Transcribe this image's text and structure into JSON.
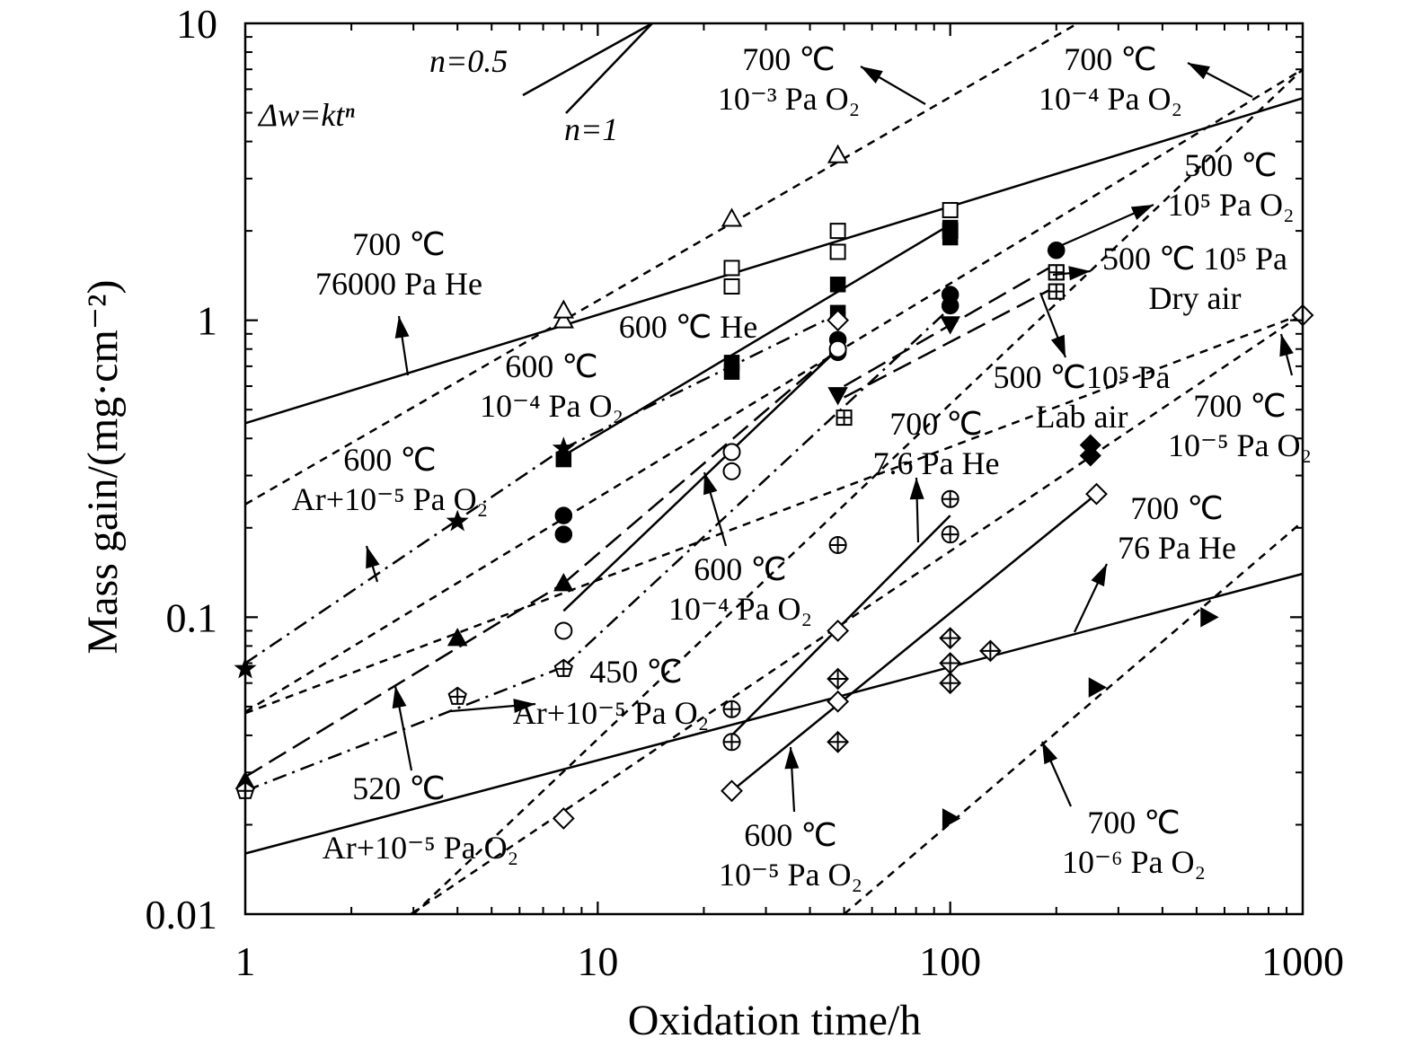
{
  "chart_data": {
    "type": "scatter",
    "xscale": "log",
    "yscale": "log",
    "xlim": [
      1,
      1000
    ],
    "ylim": [
      0.01,
      10
    ],
    "xticks": [
      "1",
      "10",
      "100",
      "1000"
    ],
    "yticks": [
      "0.01",
      "0.1",
      "1",
      "10"
    ],
    "xlabel": "Oxidation time/h",
    "ylabel": "Mass gain/(mg·cm⁻²)",
    "grid": false,
    "legend": "none",
    "series": [
      {
        "name": "700 ℃ 10⁻³ Pa O₂",
        "marker": "triangle-open",
        "line": "dashed",
        "points": [
          [
            8,
            1.0
          ],
          [
            8,
            1.08
          ],
          [
            24,
            2.2
          ],
          [
            48,
            3.6
          ]
        ]
      },
      {
        "name": "700 ℃ 76000 Pa He",
        "marker": "square-open",
        "line": "solid",
        "points": [
          [
            24,
            1.3
          ],
          [
            24,
            1.5
          ],
          [
            48,
            1.7
          ],
          [
            48,
            2.0
          ],
          [
            100,
            2.0
          ],
          [
            100,
            2.35
          ],
          [
            200,
            1.25
          ],
          [
            200,
            1.45
          ]
        ]
      },
      {
        "name": "600 ℃ He",
        "marker": "square-filled",
        "line": "solid",
        "points": [
          [
            8,
            0.34
          ],
          [
            24,
            0.67
          ],
          [
            24,
            0.72
          ],
          [
            48,
            1.06
          ],
          [
            48,
            1.32
          ],
          [
            100,
            1.9
          ],
          [
            100,
            2.05
          ]
        ]
      },
      {
        "name": "500 ℃ 10⁵ Pa O₂",
        "marker": "circle-filled",
        "line": "dash-dot",
        "points": [
          [
            8,
            0.19
          ],
          [
            8,
            0.22
          ],
          [
            48,
            0.78
          ],
          [
            48,
            0.86
          ],
          [
            100,
            1.12
          ],
          [
            100,
            1.22
          ],
          [
            200,
            1.72
          ]
        ]
      },
      {
        "name": "500 ℃ 10⁵ Pa Dry air",
        "marker": "square-cross",
        "line": "long-dash",
        "points": [
          [
            50,
            0.47
          ],
          [
            200,
            1.25
          ],
          [
            200,
            1.45
          ]
        ]
      },
      {
        "name": "500 ℃ 10⁵ Pa Lab air",
        "marker": "triangle-down-filled",
        "line": "long-dash",
        "points": [
          [
            48,
            0.56
          ],
          [
            100,
            0.97
          ]
        ]
      },
      {
        "name": "600 ℃ 10⁻⁴ Pa O₂ (stars)",
        "marker": "star",
        "line": "dash-dot",
        "points": [
          [
            1,
            0.067
          ],
          [
            4,
            0.21
          ],
          [
            8,
            0.37
          ]
        ]
      },
      {
        "name": "600 ℃ 10⁻⁴ Pa O₂",
        "marker": "circle-open",
        "line": "solid",
        "points": [
          [
            8,
            0.09
          ],
          [
            24,
            0.31
          ],
          [
            24,
            0.36
          ],
          [
            48,
            0.8
          ]
        ]
      },
      {
        "name": "520 ℃",
        "marker": "triangle-filled",
        "line": "long-dash",
        "points": [
          [
            1,
            0.028
          ],
          [
            4,
            0.085
          ],
          [
            8,
            0.13
          ]
        ]
      },
      {
        "name": "450 ℃ Ar+10⁻⁵ Pa O₂",
        "marker": "pentagon-cross",
        "line": "dash-dot",
        "points": [
          [
            1,
            0.026
          ],
          [
            4,
            0.054
          ],
          [
            8,
            0.067
          ]
        ]
      },
      {
        "name": "700 ℃ 7.6 Pa He",
        "marker": "circle-plus",
        "line": "solid",
        "points": [
          [
            24,
            0.038
          ],
          [
            24,
            0.049
          ],
          [
            48,
            0.175
          ],
          [
            100,
            0.19
          ],
          [
            100,
            0.25
          ]
        ]
      },
      {
        "name": "700 ℃ 76 Pa He",
        "marker": "diamond-cross",
        "line": "solid",
        "points": [
          [
            48,
            0.038
          ],
          [
            48,
            0.062
          ],
          [
            100,
            0.06
          ],
          [
            100,
            0.085
          ],
          [
            130,
            0.077
          ],
          [
            100,
            0.07
          ]
        ]
      },
      {
        "name": "600 ℃ 10⁻⁵ Pa O₂",
        "marker": "diamond-open",
        "line": "solid",
        "points": [
          [
            24,
            0.026
          ],
          [
            48,
            0.052
          ],
          [
            48,
            0.09
          ],
          [
            260,
            0.26
          ]
        ]
      },
      {
        "name": "700 ℃ 10⁻⁵ Pa O₂",
        "marker": "diamond-open",
        "line": "dashed",
        "points": [
          [
            8,
            0.021
          ],
          [
            1000,
            1.04
          ]
        ]
      },
      {
        "name": "700 ℃ 10⁻⁶ Pa O₂",
        "marker": "triangle-right-filled",
        "line": "dashed",
        "points": [
          [
            100,
            0.021
          ],
          [
            260,
            0.058
          ],
          [
            540,
            0.1
          ]
        ]
      },
      {
        "name": "diamond-filled",
        "marker": "diamond-filled",
        "line": "none",
        "points": [
          [
            250,
            0.35
          ],
          [
            250,
            0.38
          ]
        ]
      },
      {
        "name": "diamond-half",
        "marker": "diamond-open",
        "line": "none",
        "points": [
          [
            48,
            1.0
          ]
        ]
      }
    ],
    "fit_lines": [
      {
        "style": "solid",
        "from": [
          1,
          0.45
        ],
        "to": [
          1000,
          5.6
        ]
      },
      {
        "style": "dashed",
        "from": [
          1,
          0.24
        ],
        "to": [
          230,
          10
        ]
      },
      {
        "style": "dashed",
        "from": [
          1,
          0.048
        ],
        "to": [
          1000,
          7.0
        ]
      },
      {
        "style": "dashed",
        "from": [
          1,
          0.0475
        ],
        "to": [
          1000,
          1.05
        ]
      },
      {
        "style": "dashed",
        "from": [
          2.95,
          0.01
        ],
        "to": [
          1000,
          1.05
        ]
      },
      {
        "style": "dashed",
        "from": [
          3.0,
          0.01
        ],
        "to": [
          1000,
          7.0
        ]
      },
      {
        "style": "dashed",
        "from": [
          50,
          0.01
        ],
        "to": [
          1000,
          0.21
        ]
      },
      {
        "style": "solid",
        "from": [
          1,
          0.016
        ],
        "to": [
          1000,
          0.14
        ]
      },
      {
        "style": "solid",
        "from": [
          8,
          0.35
        ],
        "to": [
          100,
          2.1
        ]
      },
      {
        "style": "solid",
        "from": [
          8,
          0.105
        ],
        "to": [
          48,
          0.8
        ]
      },
      {
        "style": "solid",
        "from": [
          24,
          0.04
        ],
        "to": [
          100,
          0.22
        ]
      },
      {
        "style": "solid",
        "from": [
          24,
          0.026
        ],
        "to": [
          260,
          0.26
        ]
      },
      {
        "style": "dash-dot",
        "from": [
          1,
          0.07
        ],
        "to": [
          8,
          0.37
        ]
      },
      {
        "style": "dash-dot",
        "from": [
          8,
          0.37
        ],
        "to": [
          48,
          1.05
        ]
      },
      {
        "style": "dash-dot",
        "from": [
          1,
          0.026
        ],
        "to": [
          8,
          0.068
        ]
      },
      {
        "style": "dash-dot",
        "from": [
          8,
          0.068
        ],
        "to": [
          100,
          1.1
        ]
      },
      {
        "style": "long-dash",
        "from": [
          1,
          0.029
        ],
        "to": [
          8,
          0.13
        ]
      },
      {
        "style": "long-dash",
        "from": [
          8,
          0.13
        ],
        "to": [
          48,
          0.8
        ]
      },
      {
        "style": "long-dash",
        "from": [
          50,
          0.6
        ],
        "to": [
          200,
          1.55
        ]
      },
      {
        "style": "long-dash",
        "from": [
          50,
          0.55
        ],
        "to": [
          200,
          1.3
        ]
      }
    ],
    "slope_reference": {
      "label_half": "n=0.5",
      "label_one": "n=1"
    },
    "annotations": [
      {
        "lines": [
          "700 ℃",
          "10⁻³ Pa O₂"
        ]
      },
      {
        "lines": [
          "700 ℃",
          "10⁻⁴ Pa O₂"
        ]
      },
      {
        "lines": [
          "500 ℃",
          "10⁵ Pa O₂"
        ]
      },
      {
        "lines": [
          "500 ℃ 10⁵ Pa",
          "Dry air"
        ]
      },
      {
        "lines": [
          "500 ℃10⁵ Pa",
          "Lab air"
        ]
      },
      {
        "lines": [
          "700 ℃",
          "76000 Pa He"
        ]
      },
      {
        "lines": [
          "600 ℃ He"
        ]
      },
      {
        "lines": [
          "600 ℃",
          "10⁻⁴ Pa O₂"
        ]
      },
      {
        "lines": [
          "600 ℃",
          "Ar+10⁻⁵ Pa O₂"
        ]
      },
      {
        "lines": [
          "600 ℃",
          "10⁻⁴ Pa O₂"
        ]
      },
      {
        "lines": [
          "700 ℃",
          "7.6 Pa He"
        ]
      },
      {
        "lines": [
          "700 ℃",
          "10⁻⁵ Pa O₂"
        ]
      },
      {
        "lines": [
          "700 ℃",
          "76 Pa He"
        ]
      },
      {
        "lines": [
          "450 ℃"
        ]
      },
      {
        "lines": [
          "Ar+10⁻⁵ Pa O₂"
        ]
      },
      {
        "lines": [
          "520 ℃"
        ]
      },
      {
        "lines": [
          "Ar+10⁻⁵ Pa O₂"
        ]
      },
      {
        "lines": [
          "600 ℃",
          "10⁻⁵ Pa O₂"
        ]
      },
      {
        "lines": [
          "700 ℃",
          "10⁻⁶ Pa O₂"
        ]
      }
    ],
    "equation": "Δw=ktⁿ"
  }
}
